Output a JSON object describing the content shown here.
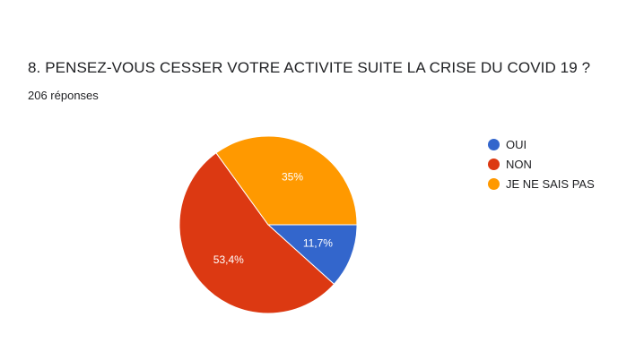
{
  "question": {
    "title": "8. PENSEZ-VOUS CESSER VOTRE ACTIVITE SUITE LA CRISE DU COVID 19 ?",
    "response_count": "206 réponses"
  },
  "chart_data": {
    "type": "pie",
    "categories": [
      "OUI",
      "NON",
      "JE NE SAIS PAS"
    ],
    "values": [
      11.7,
      53.4,
      35
    ],
    "labels": [
      "11,7%",
      "53,4%",
      "35%"
    ],
    "colors": [
      "#3366cc",
      "#dc3912",
      "#ff9900"
    ],
    "legend_position": "right"
  }
}
